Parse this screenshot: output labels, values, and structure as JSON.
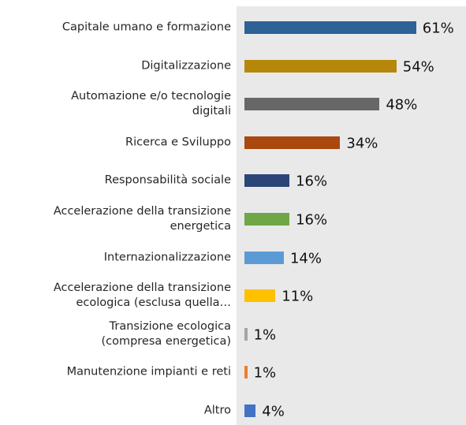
{
  "chart_data": {
    "type": "bar",
    "orientation": "horizontal",
    "categories": [
      "Capitale umano e formazione",
      "Digitalizzazione",
      "Automazione e/o tecnologie\ndigitali",
      "Ricerca e Sviluppo",
      "Responsabilità sociale",
      "Accelerazione della transizione\nenergetica",
      "Internazionalizzazione",
      "Accelerazione della transizione\necologica (esclusa quella…",
      "Transizione ecologica\n(compresa energetica)",
      "Manutenzione impianti e reti",
      "Altro"
    ],
    "values": [
      61,
      54,
      48,
      34,
      16,
      16,
      14,
      11,
      1,
      1,
      4
    ],
    "value_labels": [
      "61%",
      "54%",
      "48%",
      "34%",
      "16%",
      "16%",
      "14%",
      "11%",
      "1%",
      "1%",
      "4%"
    ],
    "colors": [
      "#2e6196",
      "#b5880c",
      "#676767",
      "#a9480f",
      "#2b4579",
      "#6fa646",
      "#5b9bd5",
      "#ffc000",
      "#a5a5a5",
      "#ed7d31",
      "#4472c4"
    ]
  }
}
